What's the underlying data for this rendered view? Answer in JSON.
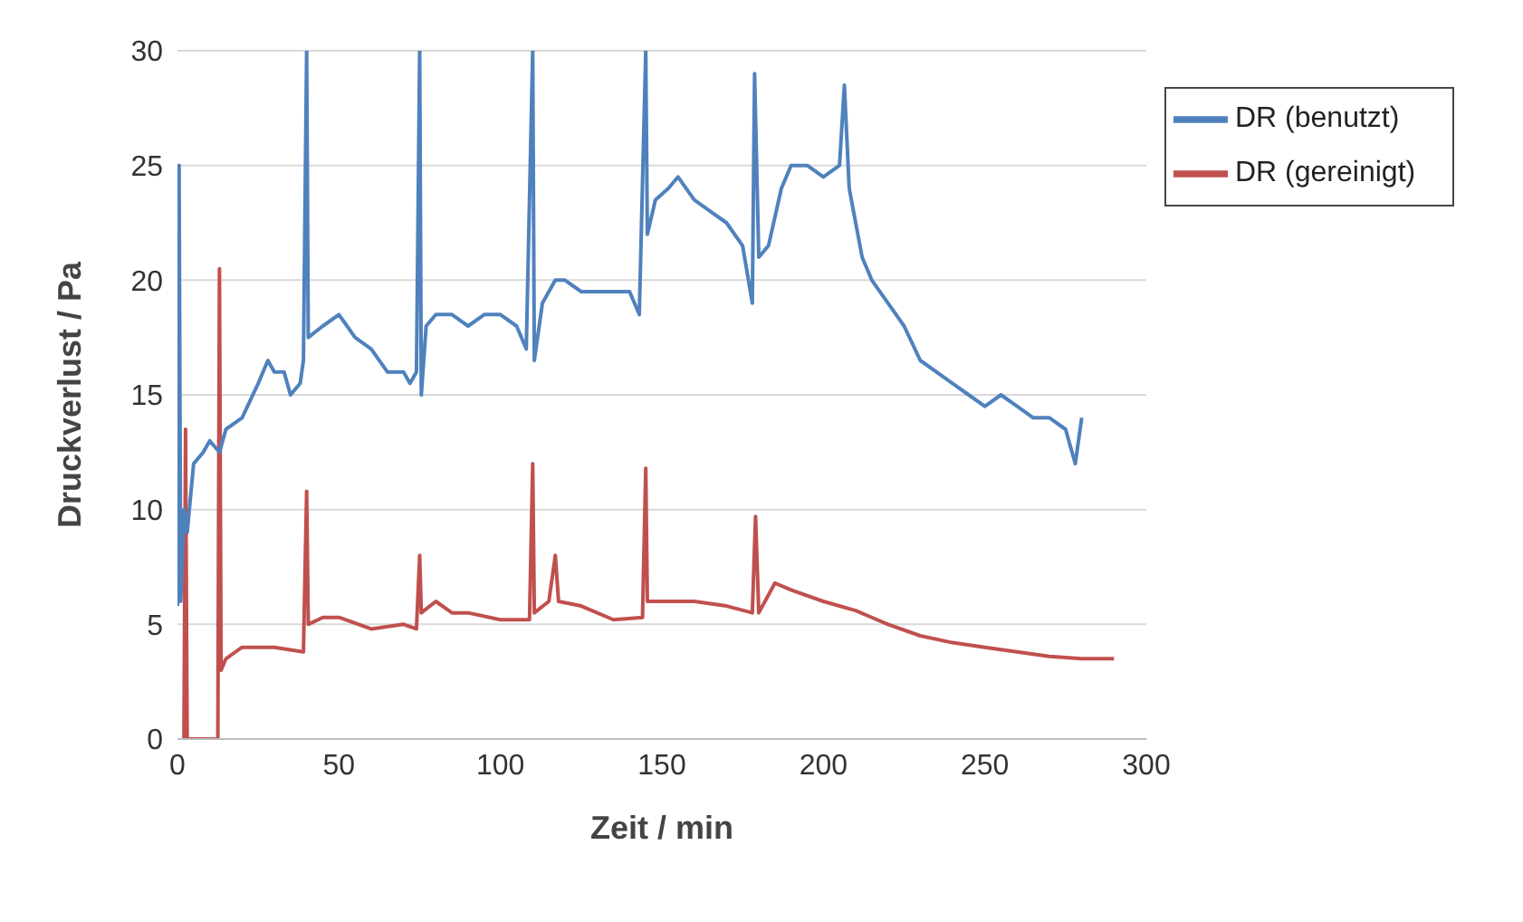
{
  "chart_data": {
    "type": "line",
    "xlabel": "Zeit / min",
    "ylabel": "Druckverlust / Pa",
    "xlim": [
      0,
      300
    ],
    "xticks": [
      0,
      50,
      100,
      150,
      200,
      250,
      300
    ],
    "ylim": [
      0,
      30
    ],
    "yticks": [
      0,
      5,
      10,
      15,
      20,
      25,
      30
    ],
    "grid": "y",
    "legend": "top right",
    "marker": "none",
    "line_style": "solid",
    "series": [
      {
        "name": "DR (gereinigt)",
        "color": "#c0504d",
        "x": [
          2,
          2.5,
          3,
          12.5,
          13,
          13.5,
          15,
          20,
          30,
          39,
          40,
          40.5,
          45,
          50,
          60,
          70,
          74,
          75,
          75.5,
          80,
          85,
          90,
          100,
          109,
          110,
          110.5,
          115,
          117,
          118,
          125,
          135,
          144,
          145,
          145.5,
          150,
          160,
          170,
          178,
          179,
          180,
          185,
          190,
          200,
          210,
          215,
          220,
          230,
          240,
          250,
          260,
          270,
          280,
          290
        ],
        "values": [
          0,
          13.5,
          0,
          0,
          20.5,
          3,
          3.5,
          4,
          4,
          3.8,
          10.8,
          5,
          5.3,
          5.3,
          4.8,
          5,
          4.8,
          8,
          5.5,
          6,
          5.5,
          5.5,
          5.2,
          5.2,
          12,
          5.5,
          6,
          8,
          6,
          5.8,
          5.2,
          5.3,
          11.8,
          6,
          6,
          6,
          5.8,
          5.5,
          9.7,
          5.5,
          6.8,
          6.5,
          6,
          5.6,
          5.3,
          5,
          4.5,
          4.2,
          4,
          3.8,
          3.6,
          3.5,
          3.5
        ]
      },
      {
        "name": "DR (benutzt)",
        "color": "#4f81bd",
        "x": [
          0,
          0.5,
          1,
          2,
          3,
          5,
          8,
          10,
          13,
          15,
          20,
          25,
          28,
          30,
          33,
          35,
          38,
          39,
          40,
          40.5,
          45,
          50,
          55,
          60,
          65,
          70,
          72,
          74,
          75,
          75.5,
          77,
          80,
          85,
          90,
          95,
          100,
          105,
          108,
          110,
          110.5,
          113,
          117,
          120,
          125,
          130,
          135,
          140,
          143,
          145,
          145.5,
          148,
          152,
          155,
          160,
          165,
          170,
          175,
          178,
          178.7,
          180,
          183,
          187,
          190,
          195,
          200,
          205,
          206.5,
          208,
          212,
          215,
          220,
          225,
          230,
          235,
          240,
          245,
          250,
          255,
          260,
          265,
          270,
          275,
          278,
          280
        ],
        "values": [
          5.8,
          25,
          6,
          10,
          9,
          12,
          12.5,
          13,
          12.5,
          13.5,
          14,
          15.5,
          16.5,
          16,
          16,
          15,
          15.5,
          16.5,
          30,
          17.5,
          18,
          18.5,
          17.5,
          17,
          16,
          16,
          15.5,
          16,
          30,
          15,
          18,
          18.5,
          18.5,
          18,
          18.5,
          18.5,
          18,
          17,
          30,
          16.5,
          19,
          20,
          20,
          19.5,
          19.5,
          19.5,
          19.5,
          18.5,
          30,
          22,
          23.5,
          24,
          24.5,
          23.5,
          23,
          22.5,
          21.5,
          19,
          29,
          21,
          21.5,
          24,
          25,
          25,
          24.5,
          25,
          28.5,
          24,
          21,
          20,
          19,
          18,
          16.5,
          16,
          15.5,
          15,
          14.5,
          15,
          14.5,
          14,
          14,
          13.5,
          12,
          14
        ]
      }
    ]
  }
}
